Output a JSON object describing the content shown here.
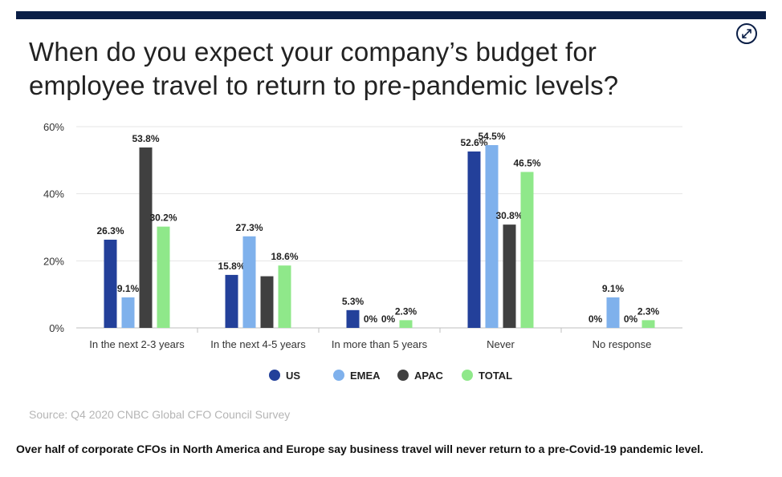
{
  "expand_icon": "expand-arrows-icon",
  "chart_data": {
    "type": "bar",
    "title": "When do you expect your company’s budget for employee travel to return to pre-pandemic levels?",
    "categories": [
      "In the next 2-3 years",
      "In the next 4-5 years",
      "In more than 5 years",
      "Never",
      "No response"
    ],
    "series": [
      {
        "name": "US",
        "color": "#23409a",
        "values": [
          26.3,
          15.8,
          5.3,
          52.6,
          0
        ],
        "labels": [
          "26.3%",
          "15.8%",
          "5.3%",
          "52.6%",
          "0%"
        ]
      },
      {
        "name": "EMEA",
        "color": "#7fb1ec",
        "values": [
          9.1,
          27.3,
          0,
          54.5,
          9.1
        ],
        "labels": [
          "9.1%",
          "27.3%",
          "0%",
          "54.5%",
          "9.1%"
        ]
      },
      {
        "name": "APAC",
        "color": "#404040",
        "values": [
          53.8,
          15.4,
          0,
          30.8,
          0
        ],
        "labels": [
          "53.8%",
          "",
          "0%",
          "30.8%",
          "0%"
        ]
      },
      {
        "name": "TOTAL",
        "color": "#8fe88a",
        "values": [
          30.2,
          18.6,
          2.3,
          46.5,
          2.3
        ],
        "labels": [
          "30.2%",
          "18.6%",
          "2.3%",
          "46.5%",
          "2.3%"
        ]
      }
    ],
    "yticks": [
      "0%",
      "20%",
      "40%",
      "60%"
    ],
    "ylim": [
      0,
      60
    ],
    "grid": true,
    "legend": "bottom-center"
  },
  "source": "Source: Q4 2020 CNBC Global CFO Council Survey",
  "caption": "Over half of corporate CFOs in North America and Europe say business travel will never return to a pre-Covid-19 pandemic level."
}
